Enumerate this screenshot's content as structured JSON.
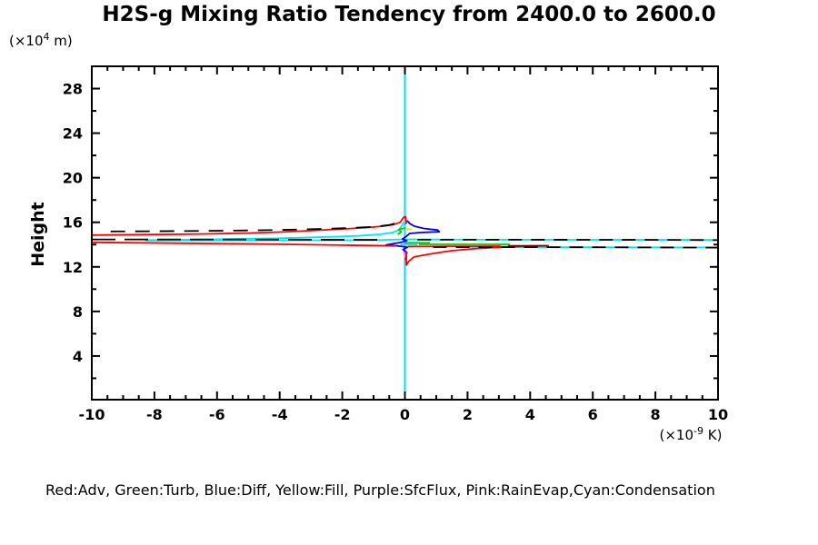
{
  "title": "H2S-g Mixing Ratio Tendency from 2400.0 to 2600.0",
  "y_axis": {
    "label": "Height",
    "unit_open": "(×10",
    "unit_exp": "4",
    "unit_close": " m)"
  },
  "x_axis": {
    "unit_open": "(×10",
    "unit_exp": "-9",
    "unit_close": " K)"
  },
  "legend_text": "Red:Adv, Green:Turb, Blue:Diff, Yellow:Fill, Purple:SfcFlux, Pink:RainEvap,Cyan:Condensation",
  "colors": {
    "background": "#ffffff",
    "frame": "#000000",
    "red": "#ff0000",
    "dark_red": "#8b0000",
    "green": "#00cc00",
    "blue": "#0000ee",
    "yellow": "#f0e000",
    "purple": "#a020f0",
    "pink": "#ff8fcf",
    "cyan": "#00e5ee",
    "zero_line_cyan": "#00dcff"
  },
  "chart_data": {
    "type": "line",
    "title": "H2S-g Mixing Ratio Tendency from 2400.0 to 2600.0",
    "xlabel": "(×10^-9 K)",
    "ylabel": "Height (×10^4 m)",
    "xlim": [
      -10,
      10
    ],
    "ylim": [
      0.08,
      30.0
    ],
    "x_major_ticks": [
      -10,
      -8,
      -6,
      -4,
      -2,
      0,
      2,
      4,
      6,
      8,
      10
    ],
    "x_minor_step": 0.5,
    "y_major_ticks": [
      4,
      8,
      12,
      16,
      20,
      24,
      28
    ],
    "y_minor_step": 2,
    "grid": false,
    "legend_position": "bottom",
    "zero_line": {
      "x": 0,
      "color": "#00dcff"
    },
    "series": [
      {
        "name": "sfcflux-purple",
        "legend": "Purple:SfcFlux",
        "color": "#a020f0",
        "dash": null,
        "points": [
          [
            -0.02,
            14.5
          ],
          [
            0.01,
            14.1
          ],
          [
            -0.02,
            13.6
          ],
          [
            0.01,
            12.8
          ]
        ]
      },
      {
        "name": "rainevap-pink",
        "legend": "Pink:RainEvap",
        "color": "#ff8fcf",
        "dash": null,
        "points": [
          [
            0.015,
            14.3
          ],
          [
            -0.01,
            13.9
          ],
          [
            0.015,
            13.4
          ],
          [
            -0.01,
            12.6
          ]
        ]
      },
      {
        "name": "condensation-rise",
        "legend": "Cyan:Condensation",
        "color": "#00e5ee",
        "dash": null,
        "points": [
          [
            -8.3,
            14.4
          ],
          [
            -6,
            14.48
          ],
          [
            -4,
            14.57
          ],
          [
            -2.5,
            14.68
          ],
          [
            -1.5,
            14.78
          ],
          [
            -0.8,
            14.92
          ],
          [
            -0.4,
            15.08
          ],
          [
            -0.2,
            15.3
          ],
          [
            -0.08,
            15.75
          ],
          [
            -0.04,
            16.0
          ]
        ]
      },
      {
        "name": "condensation-flat",
        "legend": "Cyan:Condensation",
        "color": "#00e5ee",
        "dash": null,
        "points": [
          [
            -8.3,
            14.36
          ],
          [
            -4,
            14.38
          ],
          [
            -1,
            14.4
          ],
          [
            0,
            14.47
          ],
          [
            1,
            14.45
          ],
          [
            3,
            14.44
          ],
          [
            6,
            14.43
          ],
          [
            10,
            14.42
          ]
        ]
      },
      {
        "name": "condensation-lower-right",
        "legend": "Cyan:Condensation",
        "color": "#00e5ee",
        "dash": null,
        "points": [
          [
            1.7,
            13.79
          ],
          [
            4,
            13.77
          ],
          [
            7,
            13.75
          ],
          [
            10,
            13.74
          ]
        ]
      },
      {
        "name": "condensation-lower-left",
        "legend": "Cyan:Condensation",
        "color": "#00e5ee",
        "dash": null,
        "points": [
          [
            -0.15,
            14.0
          ],
          [
            0.4,
            14.0
          ]
        ]
      },
      {
        "name": "turb-zigzag",
        "legend": "Green:Turb",
        "color": "#00cc00",
        "dash": null,
        "points": [
          [
            -0.23,
            14.9
          ],
          [
            -0.12,
            15.15
          ],
          [
            -0.2,
            15.35
          ],
          [
            0.02,
            15.5
          ]
        ]
      },
      {
        "name": "turb-right-1",
        "legend": "Green:Turb",
        "color": "#00cc00",
        "dash": null,
        "points": [
          [
            0.0,
            14.16
          ],
          [
            0.8,
            14.16
          ]
        ]
      },
      {
        "name": "turb-right-2",
        "legend": "Green:Turb",
        "color": "#00cc00",
        "dash": null,
        "points": [
          [
            0.45,
            14.02
          ],
          [
            3.35,
            14.02
          ]
        ]
      },
      {
        "name": "turb-right-3",
        "legend": "Green:Turb",
        "color": "#00cc00",
        "dash": null,
        "points": [
          [
            2.75,
            13.82
          ],
          [
            3.5,
            13.82
          ]
        ]
      },
      {
        "name": "diff-blue",
        "legend": "Blue:Diff",
        "color": "#0000ee",
        "dash": null,
        "points": [
          [
            0.07,
            16.15
          ],
          [
            0.15,
            15.9
          ],
          [
            0.3,
            15.65
          ],
          [
            0.6,
            15.45
          ],
          [
            1.05,
            15.3
          ],
          [
            1.1,
            15.15
          ],
          [
            0.5,
            15.08
          ],
          [
            0.15,
            15.0
          ],
          [
            0.05,
            14.75
          ],
          [
            -0.08,
            14.5
          ],
          [
            0.06,
            14.35
          ],
          [
            -0.15,
            14.18
          ],
          [
            -0.6,
            13.97
          ],
          [
            -0.3,
            13.9
          ],
          [
            0.08,
            13.77
          ],
          [
            -0.06,
            13.55
          ],
          [
            0.06,
            13.3
          ],
          [
            0.02,
            12.62
          ]
        ]
      },
      {
        "name": "fill-yellow",
        "legend": "Yellow:Fill",
        "color": "#f0e000",
        "dash": null,
        "points": [
          [
            0.04,
            15.38
          ],
          [
            0.22,
            15.38
          ]
        ]
      },
      {
        "name": "adv-upper",
        "legend": "Red:Adv",
        "color": "#ff0000",
        "dash": null,
        "points": [
          [
            -10,
            14.85
          ],
          [
            -8,
            14.9
          ],
          [
            -6.5,
            14.95
          ],
          [
            -5,
            15.03
          ],
          [
            -4,
            15.12
          ],
          [
            -3,
            15.25
          ],
          [
            -2,
            15.4
          ],
          [
            -1.2,
            15.53
          ],
          [
            -0.7,
            15.65
          ],
          [
            -0.35,
            15.8
          ],
          [
            -0.15,
            16.0
          ],
          [
            -0.04,
            16.45
          ],
          [
            0.02,
            16.5
          ],
          [
            0.05,
            15.85
          ]
        ]
      },
      {
        "name": "adv-lower-right",
        "legend": "Red:Adv",
        "color": "#ff0000",
        "dash": null,
        "points": [
          [
            0.04,
            13.35
          ],
          [
            0.05,
            12.15
          ],
          [
            0.12,
            12.5
          ],
          [
            0.3,
            12.9
          ],
          [
            0.6,
            13.05
          ],
          [
            1.0,
            13.25
          ],
          [
            1.5,
            13.45
          ],
          [
            2.2,
            13.62
          ],
          [
            3.0,
            13.76
          ],
          [
            3.9,
            13.86
          ],
          [
            4.6,
            13.9
          ]
        ]
      },
      {
        "name": "adv-lower-left",
        "legend": "Red:Adv",
        "color": "#ff0000",
        "dash": null,
        "points": [
          [
            -10,
            14.2
          ],
          [
            -7,
            14.12
          ],
          [
            -4,
            14.03
          ],
          [
            -2,
            13.95
          ],
          [
            -0.3,
            13.88
          ]
        ]
      },
      {
        "name": "adv-flat-right",
        "legend": "Red:Adv",
        "color": "#ff0000",
        "dash": null,
        "points": [
          [
            0.1,
            13.82
          ],
          [
            1.4,
            13.84
          ],
          [
            3.05,
            13.86
          ]
        ]
      },
      {
        "name": "adv-dark-segment",
        "legend": "Red:Adv",
        "color": "#8b0000",
        "dash": null,
        "points": [
          [
            3.3,
            13.88
          ],
          [
            4.55,
            13.9
          ]
        ]
      },
      {
        "name": "total-upper",
        "legend": "",
        "color": "#000000",
        "dash": "16 11",
        "points": [
          [
            -9.4,
            15.18
          ],
          [
            -7,
            15.21
          ],
          [
            -5,
            15.27
          ],
          [
            -3.5,
            15.34
          ],
          [
            -2,
            15.46
          ],
          [
            -1,
            15.59
          ],
          [
            -0.5,
            15.76
          ],
          [
            -0.2,
            15.98
          ],
          [
            -0.07,
            16.35
          ]
        ]
      },
      {
        "name": "total-left-flat",
        "legend": "",
        "color": "#000000",
        "dash": "26 10",
        "points": [
          [
            -10,
            14.46
          ],
          [
            -6,
            14.46
          ],
          [
            -3,
            14.44
          ],
          [
            -0.6,
            14.42
          ]
        ]
      },
      {
        "name": "total-right-a",
        "legend": "",
        "color": "#000000",
        "dash": "15 10",
        "points": [
          [
            0.4,
            14.44
          ],
          [
            4,
            14.44
          ],
          [
            8,
            14.42
          ],
          [
            10,
            14.4
          ]
        ]
      },
      {
        "name": "total-right-b",
        "legend": "",
        "color": "#000000",
        "dash": "15 10",
        "points": [
          [
            0.9,
            13.78
          ],
          [
            3,
            13.77
          ],
          [
            6,
            13.76
          ],
          [
            10,
            13.73
          ]
        ]
      }
    ]
  }
}
